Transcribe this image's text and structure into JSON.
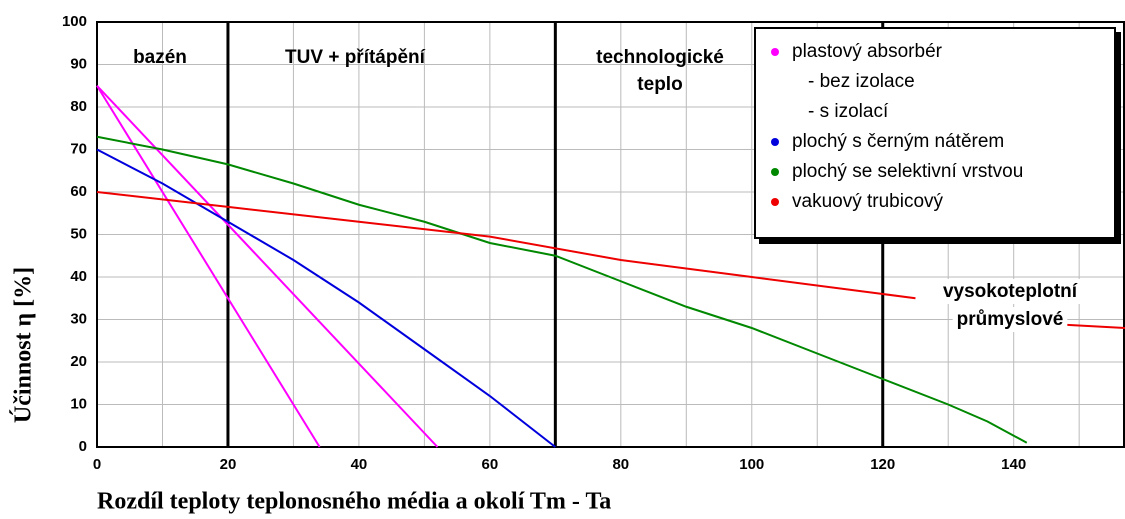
{
  "chart_data": {
    "type": "line",
    "xlabel": "Rozdíl teploty teplonosného média a okolí   Tm - Ta",
    "ylabel": "Účinnost  η [%]",
    "xlim": [
      0,
      157
    ],
    "ylim": [
      0,
      100
    ],
    "xticks": [
      0,
      20,
      40,
      60,
      80,
      100,
      120,
      140
    ],
    "xminor": [
      10,
      30,
      50,
      70,
      90,
      110,
      130,
      150
    ],
    "yticks": [
      0,
      10,
      20,
      30,
      40,
      50,
      60,
      70,
      80,
      90,
      100
    ],
    "grid": true,
    "dividers": [
      20,
      70,
      120
    ],
    "regions": [
      {
        "label": [
          "bazén"
        ]
      },
      {
        "label": [
          "TUV + přítápění"
        ]
      },
      {
        "label": [
          "technologické",
          "teplo"
        ]
      },
      {
        "label": [
          "vysokoteplotní",
          "průmyslové"
        ]
      }
    ],
    "legend_group": "plastový absorbér",
    "legend_group_color": "#ff00ff",
    "series": [
      {
        "name": "- bez izolace",
        "color": "#ff00ff",
        "group": true,
        "x": [
          0,
          34
        ],
        "values": [
          85,
          0
        ]
      },
      {
        "name": "- s izolací",
        "color": "#ff00ff",
        "group": true,
        "x": [
          0,
          52
        ],
        "values": [
          85,
          0
        ]
      },
      {
        "name": "plochý s černým nátěrem",
        "color": "#0000dd",
        "x": [
          0,
          10,
          20,
          30,
          40,
          50,
          60,
          70
        ],
        "values": [
          70,
          62,
          53,
          44,
          34,
          23,
          12,
          0
        ]
      },
      {
        "name": "plochý se selektivní vrstvou",
        "color": "#008800",
        "x": [
          0,
          10,
          20,
          30,
          40,
          50,
          60,
          70,
          80,
          90,
          100,
          110,
          120,
          130,
          136,
          142
        ],
        "values": [
          73,
          70,
          66.5,
          62,
          57,
          53,
          48,
          45,
          39,
          33,
          28,
          22,
          16,
          10,
          6,
          1
        ]
      },
      {
        "name": "vakuový trubicový",
        "color": "#ee0000",
        "x": [
          0,
          20,
          40,
          60,
          80,
          100,
          120,
          125,
          130,
          137,
          145,
          157
        ],
        "values": [
          60,
          56.5,
          53,
          49.5,
          44,
          40,
          36,
          35,
          null,
          32,
          29,
          28
        ]
      }
    ]
  }
}
